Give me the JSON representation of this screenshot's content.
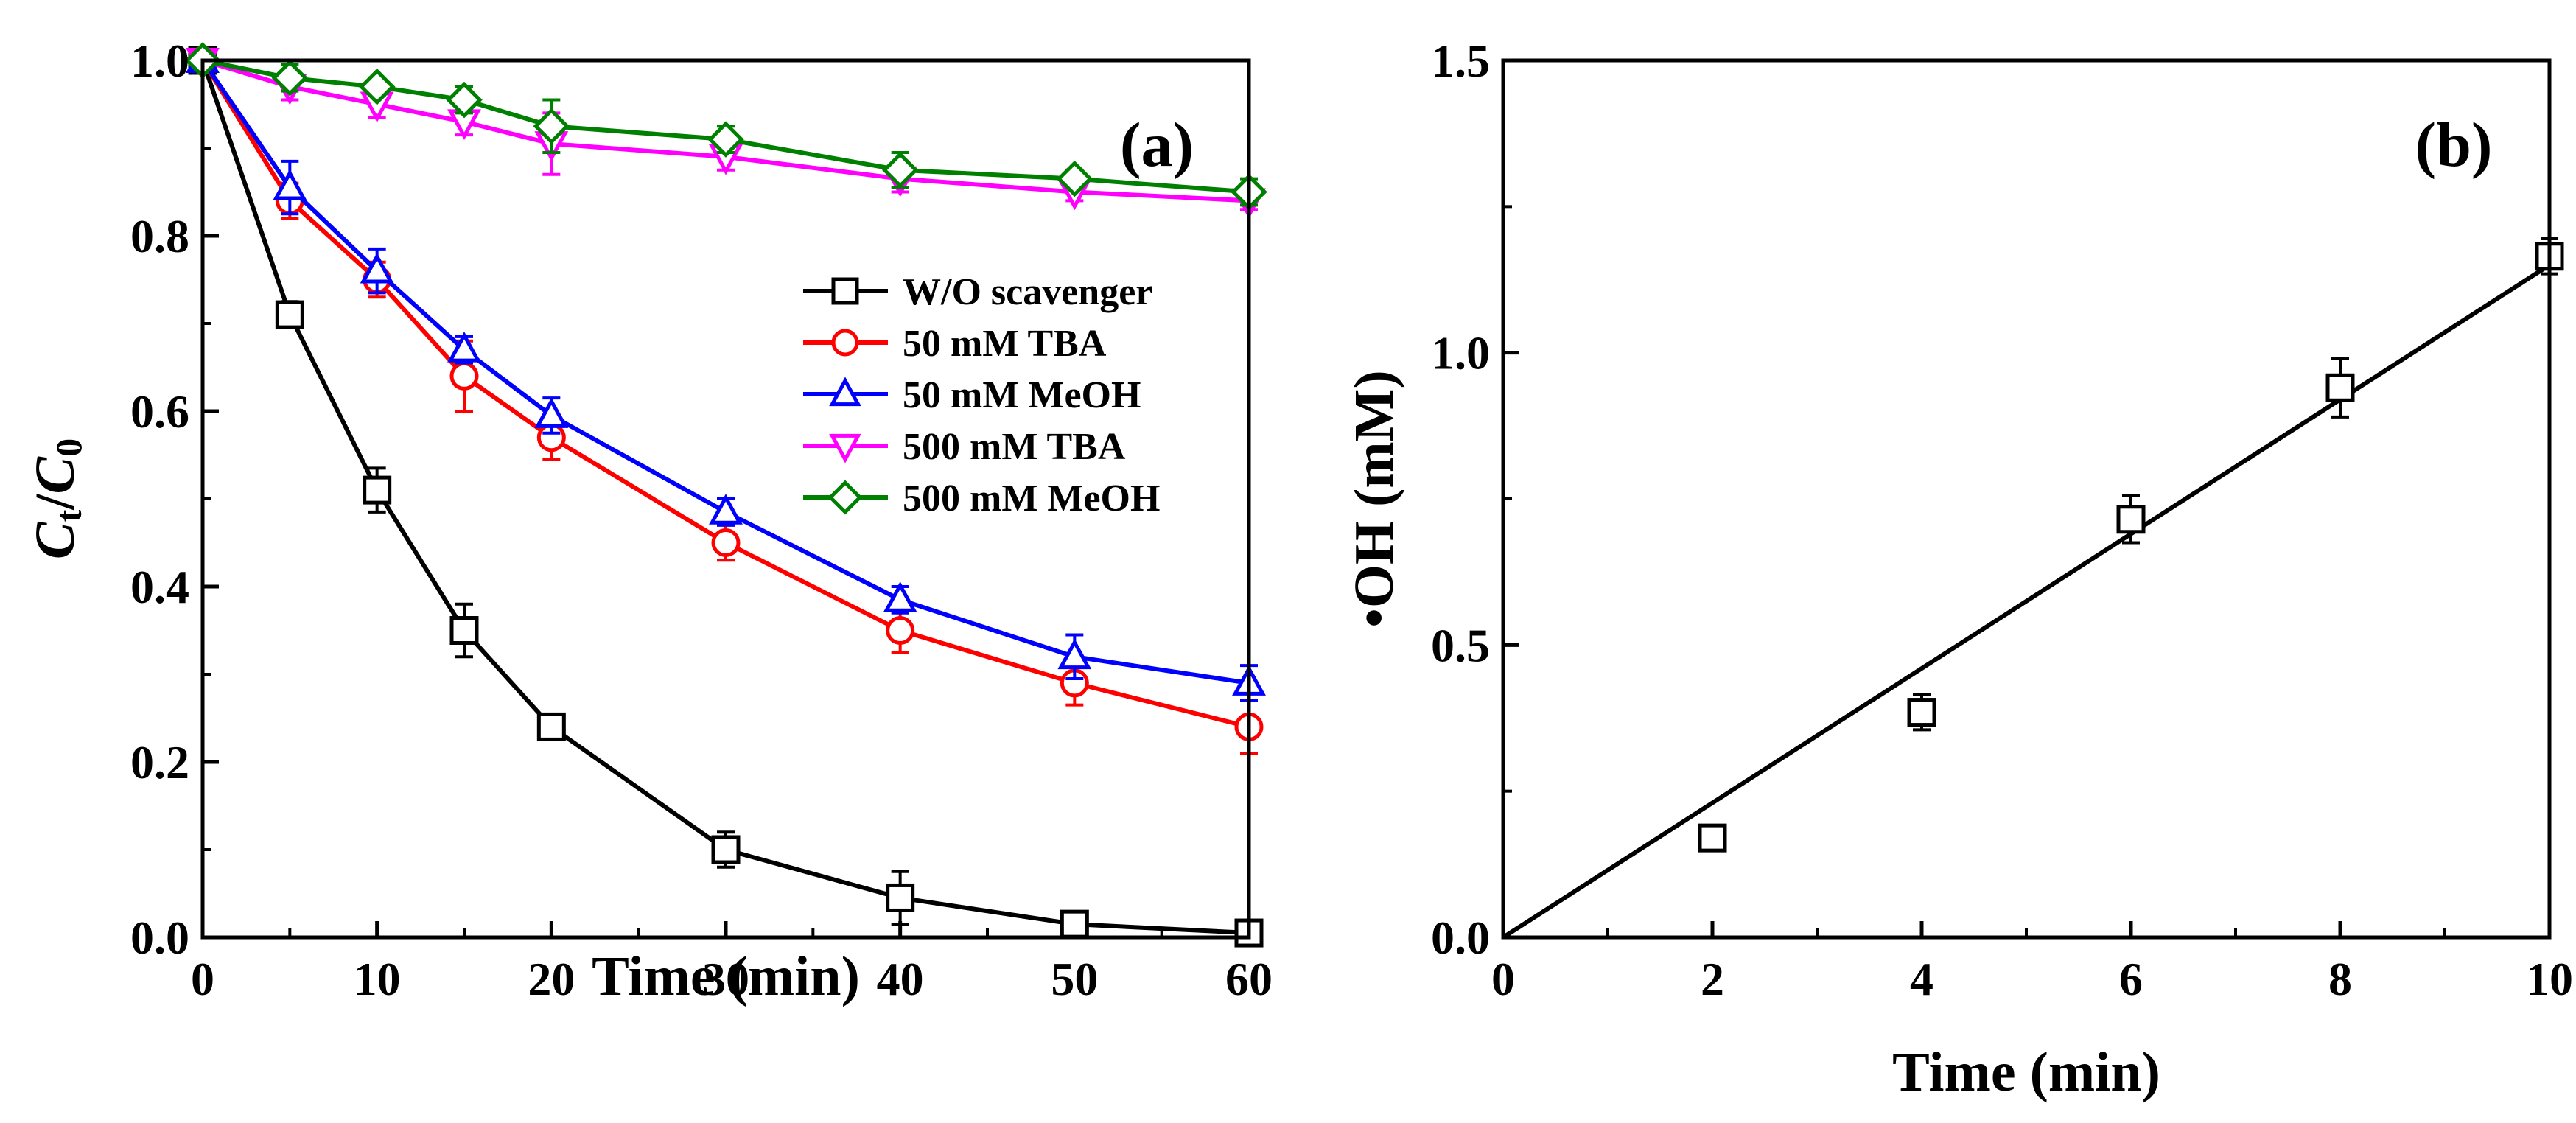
{
  "chart_data": [
    {
      "type": "line",
      "panel_label": "(a)",
      "xlabel": "Time (min)",
      "ylabel_main": "C",
      "ylabel_sub1": "t",
      "ylabel_mid": "/",
      "ylabel_main2": "C",
      "ylabel_sub2": "0",
      "xlim": [
        0,
        60
      ],
      "ylim": [
        0,
        1.0
      ],
      "xticks": [
        0,
        10,
        20,
        30,
        40,
        50,
        60
      ],
      "yticks": [
        0.0,
        0.2,
        0.4,
        0.6,
        0.8,
        1.0
      ],
      "x": [
        0,
        5,
        10,
        15,
        20,
        30,
        40,
        50,
        60
      ],
      "legend_position": "center-right",
      "series": [
        {
          "name": "W/O scavenger",
          "color": "#000000",
          "marker": "square",
          "values": [
            1.0,
            0.71,
            0.51,
            0.35,
            0.24,
            0.1,
            0.045,
            0.015,
            0.005
          ],
          "errors": [
            0.01,
            0.015,
            0.025,
            0.03,
            0.01,
            0.02,
            0.03,
            0.01,
            0.005
          ]
        },
        {
          "name": "50 mM TBA",
          "color": "#ff0000",
          "marker": "circle",
          "values": [
            1.0,
            0.84,
            0.75,
            0.64,
            0.57,
            0.45,
            0.35,
            0.29,
            0.24
          ],
          "errors": [
            0.01,
            0.02,
            0.02,
            0.04,
            0.025,
            0.02,
            0.025,
            0.025,
            0.03
          ]
        },
        {
          "name": "50 mM MeOH",
          "color": "#0000ff",
          "marker": "triangle-up",
          "values": [
            1.0,
            0.855,
            0.76,
            0.67,
            0.595,
            0.485,
            0.385,
            0.32,
            0.29
          ],
          "errors": [
            0.01,
            0.03,
            0.025,
            0.015,
            0.02,
            0.015,
            0.015,
            0.025,
            0.02
          ]
        },
        {
          "name": "500 mM TBA",
          "color": "#ff00ff",
          "marker": "triangle-down",
          "values": [
            1.0,
            0.97,
            0.95,
            0.93,
            0.905,
            0.89,
            0.865,
            0.85,
            0.84
          ],
          "errors": [
            0.01,
            0.015,
            0.015,
            0.015,
            0.035,
            0.015,
            0.015,
            0.01,
            0.01
          ]
        },
        {
          "name": "500 mM MeOH",
          "color": "#008000",
          "marker": "diamond",
          "values": [
            1.0,
            0.98,
            0.97,
            0.955,
            0.925,
            0.91,
            0.875,
            0.865,
            0.85
          ],
          "errors": [
            0.01,
            0.015,
            0.01,
            0.015,
            0.03,
            0.015,
            0.02,
            0.01,
            0.015
          ]
        }
      ]
    },
    {
      "type": "scatter",
      "panel_label": "(b)",
      "xlabel": "Time (min)",
      "ylabel": "•OH (mM)",
      "xlim": [
        0,
        10
      ],
      "ylim": [
        0,
        1.5
      ],
      "xticks": [
        0,
        2,
        4,
        6,
        8,
        10
      ],
      "yticks": [
        0.0,
        0.5,
        1.0,
        1.5
      ],
      "points": {
        "x": [
          2,
          4,
          6,
          8,
          10
        ],
        "y": [
          0.17,
          0.385,
          0.715,
          0.94,
          1.165
        ],
        "errors": [
          0.02,
          0.03,
          0.04,
          0.05,
          0.03
        ],
        "color": "#000000",
        "marker": "square"
      },
      "fit_line": {
        "x": [
          0,
          10
        ],
        "y": [
          0.0,
          1.15
        ],
        "color": "#000000"
      }
    }
  ]
}
